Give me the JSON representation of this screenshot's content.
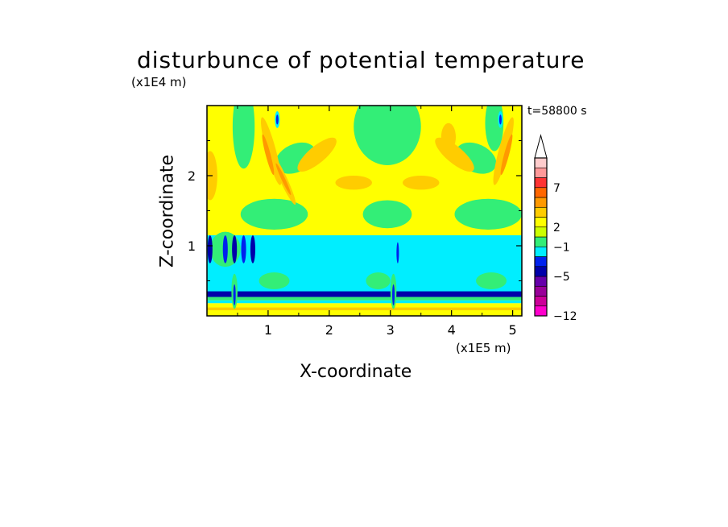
{
  "chart_data": {
    "type": "heatmap",
    "title": "disturbunce of potential temperature",
    "time_label": "t=58800 s",
    "x_axis": {
      "label": "X-coordinate",
      "unit_label": "(x1E5 m)",
      "range": [
        0,
        5.15
      ],
      "ticks": [
        1,
        2,
        3,
        4,
        5
      ],
      "tick_labels": [
        "1",
        "2",
        "3",
        "4",
        "5"
      ]
    },
    "y_axis": {
      "label": "Z-coordinate",
      "unit_label": "(x1E4 m)",
      "range": [
        0,
        3.0
      ],
      "ticks": [
        1,
        2
      ],
      "tick_labels": [
        "1",
        "2"
      ]
    },
    "colorbar": {
      "extend": "max",
      "levels": [
        -12,
        -5,
        -1,
        2,
        7
      ],
      "level_labels": [
        "-12",
        "-5",
        "-1",
        "2",
        "7"
      ],
      "colors": [
        "#ff00cc",
        "#cc0099",
        "#990099",
        "#6600aa",
        "#0000aa",
        "#0022ee",
        "#00eeff",
        "#33ee77",
        "#ccff00",
        "#ffff00",
        "#ffcc00",
        "#ff9900",
        "#ff6600",
        "#ff3333",
        "#ff9999",
        "#ffcccc"
      ]
    },
    "field_colors": {
      "positive_strong": "#ff9900",
      "positive": "#ffcc00",
      "weak_positive": "#ffff00",
      "near_zero": "#33ee77",
      "weak_negative": "#00eeff",
      "negative": "#0022ee",
      "strong_negative": "#0000aa"
    }
  }
}
